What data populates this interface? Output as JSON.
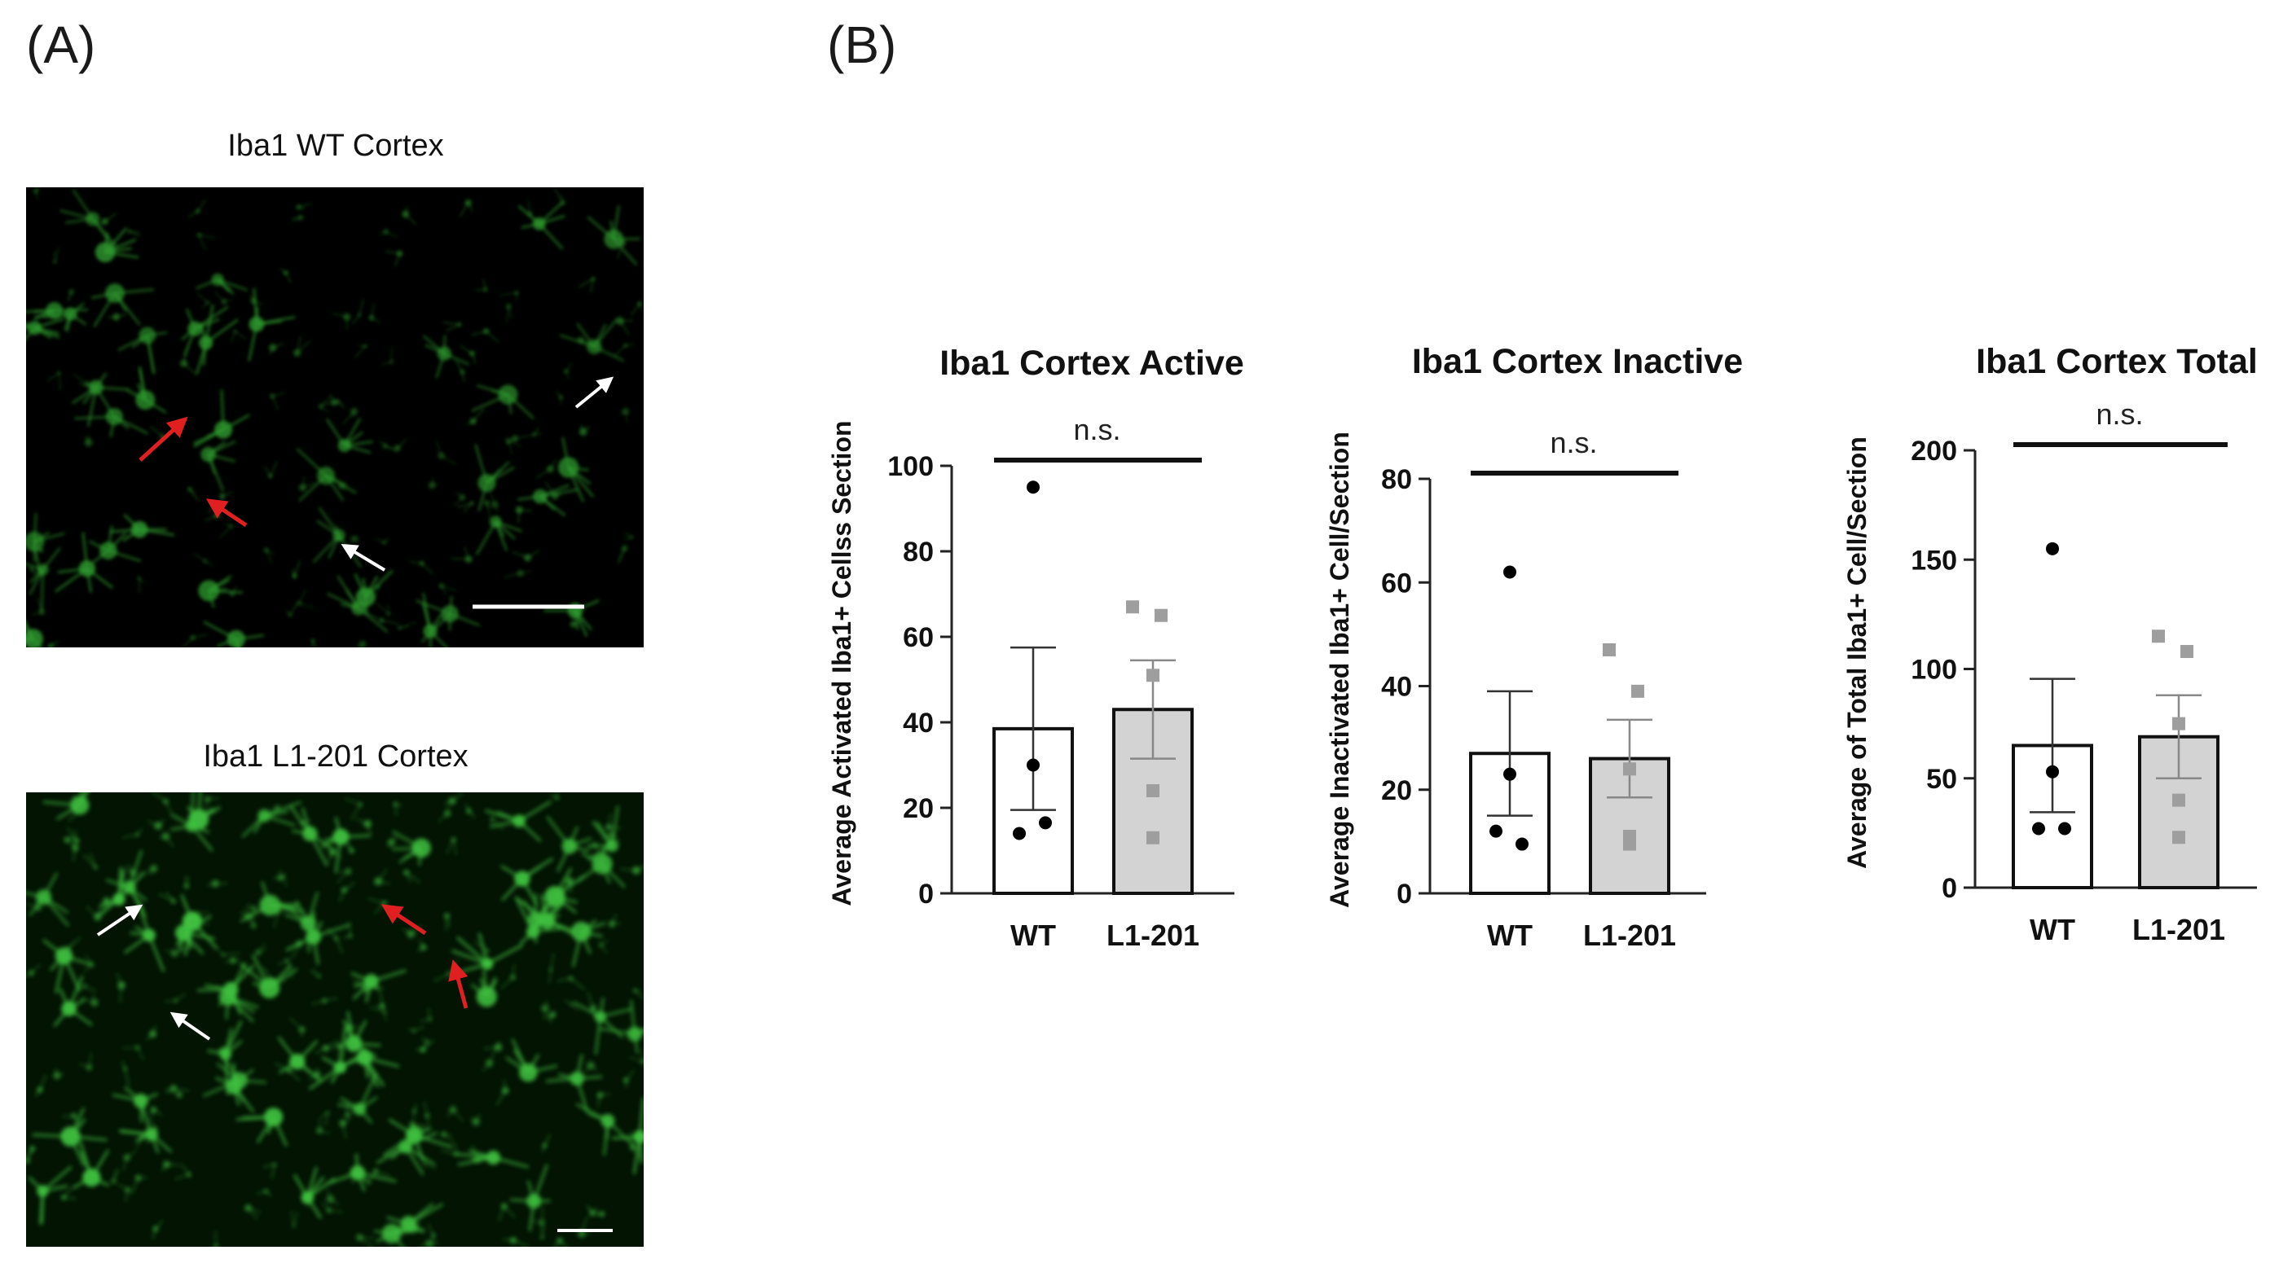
{
  "figure": {
    "panel_a_label": "(A)",
    "panel_b_label": "(B)"
  },
  "micrographs": [
    {
      "title": "Iba1 WT Cortex",
      "stain_color": "#2f9e2f"
    },
    {
      "title": "Iba1 L1-201 Cortex",
      "stain_color": "#3fbf3f"
    }
  ],
  "colors": {
    "wt_fill": "#ffffff",
    "l1_fill": "#d3d3d3",
    "wt_points": "#000000",
    "l1_points": "#9e9e9e",
    "axis": "#222222",
    "activated_arrow": "#e02020",
    "inactivated_arrow": "#ffffff"
  },
  "chart_data": [
    {
      "type": "bar",
      "title": "Iba1 Cortex Active",
      "ylabel": "Average Activated Iba1+ Cellss Section",
      "categories": [
        "WT",
        "L1-201"
      ],
      "values": [
        38.5,
        43
      ],
      "sem": [
        19,
        11.5
      ],
      "points": [
        [
          95,
          30,
          14,
          16.5
        ],
        [
          67,
          65,
          51,
          24,
          13
        ]
      ],
      "ylim": [
        0,
        100
      ],
      "yticks": [
        0,
        20,
        40,
        60,
        80,
        100
      ],
      "significance": "n.s."
    },
    {
      "type": "bar",
      "title": "Iba1 Cortex Inactive",
      "ylabel": "Average Inactivated Iba1+ Cell/Section",
      "categories": [
        "WT",
        "L1-201"
      ],
      "values": [
        27,
        26
      ],
      "sem": [
        12,
        7.5
      ],
      "points": [
        [
          62,
          23,
          12,
          9.5
        ],
        [
          47,
          39,
          24,
          11,
          9.5
        ]
      ],
      "ylim": [
        0,
        80
      ],
      "yticks": [
        0,
        20,
        40,
        60,
        80
      ],
      "significance": "n.s."
    },
    {
      "type": "bar",
      "title": "Iba1 Cortex Total",
      "ylabel": "Average of Total Iba1+ Cell/Section",
      "categories": [
        "WT",
        "L1-201"
      ],
      "values": [
        65,
        69
      ],
      "sem": [
        30.5,
        19
      ],
      "points": [
        [
          155,
          53,
          27,
          27
        ],
        [
          115,
          108,
          75,
          40,
          23
        ]
      ],
      "ylim": [
        0,
        200
      ],
      "yticks": [
        0,
        50,
        100,
        150,
        200
      ],
      "significance": "n.s."
    }
  ]
}
